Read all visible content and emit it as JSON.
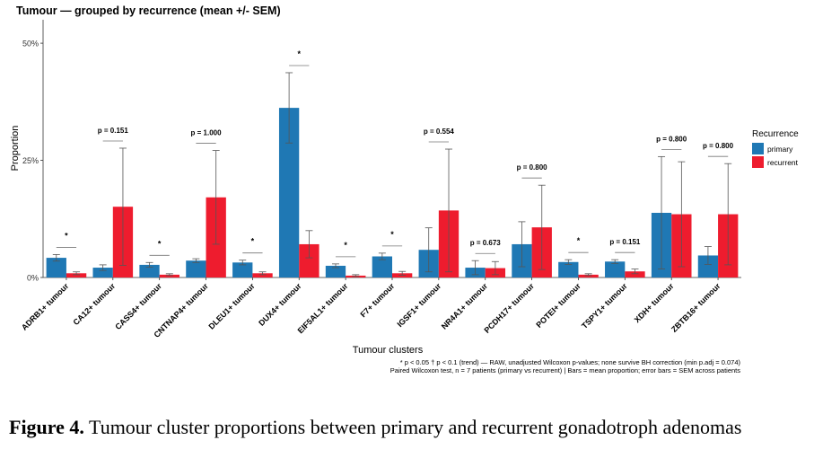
{
  "chart_data": {
    "type": "bar",
    "title": "Tumour — grouped by recurrence (mean +/- SEM)",
    "xlabel": "Tumour clusters",
    "ylabel": "Proportion",
    "ylim": [
      0,
      0.55
    ],
    "yticks": [
      0,
      0.25,
      0.5
    ],
    "ytick_labels": [
      "0%",
      "25%",
      "50%"
    ],
    "grid": false,
    "legend": {
      "title": "Recurrence",
      "position": "right"
    },
    "categories": [
      "ADRB1+ tumour",
      "CA12+ tumour",
      "CASS4+ tumour",
      "CNTNAP4+ tumour",
      "DLEU1+ tumour",
      "DUX4+ tumour",
      "EIF5AL1+ tumour",
      "F7+ tumour",
      "IGSF1+ tumour",
      "NR4A1+ tumour",
      "PCDH17+ tumour",
      "POTEI+ tumour",
      "TSPY1+ tumour",
      "XDH+ tumour",
      "ZBTB16+ tumour"
    ],
    "series": [
      {
        "name": "primary",
        "color": "#1f78b4",
        "values": [
          0.042,
          0.021,
          0.027,
          0.036,
          0.032,
          0.362,
          0.025,
          0.045,
          0.059,
          0.021,
          0.071,
          0.033,
          0.034,
          0.138,
          0.047
        ],
        "sem": [
          0.007,
          0.006,
          0.005,
          0.004,
          0.005,
          0.075,
          0.004,
          0.007,
          0.047,
          0.015,
          0.048,
          0.005,
          0.004,
          0.12,
          0.019
        ]
      },
      {
        "name": "recurrent",
        "color": "#ee1c2e",
        "values": [
          0.009,
          0.151,
          0.006,
          0.171,
          0.009,
          0.071,
          0.004,
          0.009,
          0.143,
          0.02,
          0.107,
          0.006,
          0.013,
          0.135,
          0.135
        ],
        "sem": [
          0.003,
          0.125,
          0.002,
          0.1,
          0.003,
          0.029,
          0.002,
          0.004,
          0.131,
          0.014,
          0.09,
          0.002,
          0.005,
          0.112,
          0.108
        ]
      }
    ],
    "annotations": [
      "*",
      "p = 0.151",
      "*",
      "p = 1.000",
      "*",
      "*",
      "*",
      "*",
      "p = 0.554",
      "p = 0.673",
      "p = 0.800",
      "*",
      "p = 0.151",
      "p = 0.800",
      "p = 0.800"
    ],
    "footnotes": [
      "* p < 0.05   † p < 0.1 (trend) — RAW, unadjusted Wilcoxon p-values; none survive BH correction (min p.adj = 0.074)",
      "Paired Wilcoxon test, n = 7 patients (primary vs recurrent)   |   Bars = mean proportion; error bars = SEM across patients"
    ]
  },
  "figure_caption": {
    "label": "Figure 4.",
    "text": "Tumour cluster proportions between primary and recurrent gonadotroph adenomas"
  }
}
